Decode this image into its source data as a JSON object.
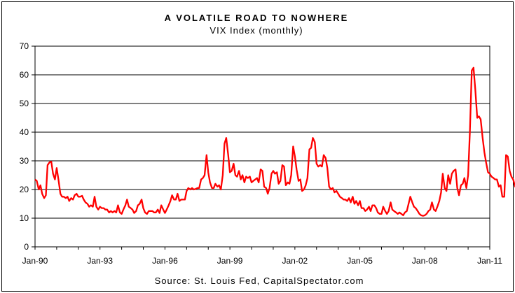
{
  "chart_data": {
    "type": "line",
    "title": "A VOLATILE ROAD TO NOWHERE",
    "subtitle": "VIX Index (monthly)",
    "source": "Source: St. Louis Fed, CapitalSpectator.com",
    "ylim": [
      0,
      70
    ],
    "y_ticks": [
      0,
      10,
      20,
      30,
      40,
      50,
      60,
      70
    ],
    "y_tick_labels": [
      "0",
      "10",
      "20",
      "30",
      "40",
      "50",
      "60",
      "70"
    ],
    "x_ticks": [
      1990,
      1993,
      1996,
      1999,
      2002,
      2005,
      2008,
      2011
    ],
    "x_tick_labels": [
      "Jan-90",
      "Jan-93",
      "Jan-96",
      "Jan-99",
      "Jan-02",
      "Jan-05",
      "Jan-08",
      "Jan-11"
    ],
    "xlim": [
      1990,
      2011
    ],
    "grid": "horizontal",
    "line_color": "#ff0000",
    "series": [
      {
        "values": [
          [
            1990.0,
            23.5
          ],
          [
            1990.08,
            23.0
          ],
          [
            1990.17,
            20.0
          ],
          [
            1990.25,
            21.5
          ],
          [
            1990.33,
            18.5
          ],
          [
            1990.42,
            17.0
          ],
          [
            1990.5,
            18.0
          ],
          [
            1990.58,
            28.5
          ],
          [
            1990.67,
            29.5
          ],
          [
            1990.75,
            29.7
          ],
          [
            1990.83,
            25.5
          ],
          [
            1990.92,
            23.5
          ],
          [
            1991.0,
            27.5
          ],
          [
            1991.08,
            23.5
          ],
          [
            1991.17,
            18.5
          ],
          [
            1991.25,
            17.5
          ],
          [
            1991.33,
            17.5
          ],
          [
            1991.42,
            17.0
          ],
          [
            1991.5,
            17.5
          ],
          [
            1991.58,
            16.0
          ],
          [
            1991.67,
            17.0
          ],
          [
            1991.75,
            16.5
          ],
          [
            1991.83,
            18.0
          ],
          [
            1991.92,
            18.5
          ],
          [
            1992.0,
            17.5
          ],
          [
            1992.08,
            17.5
          ],
          [
            1992.17,
            17.8
          ],
          [
            1992.25,
            16.5
          ],
          [
            1992.33,
            15.5
          ],
          [
            1992.42,
            15.0
          ],
          [
            1992.5,
            14.0
          ],
          [
            1992.58,
            14.5
          ],
          [
            1992.67,
            14.0
          ],
          [
            1992.75,
            17.5
          ],
          [
            1992.83,
            14.0
          ],
          [
            1992.92,
            13.0
          ],
          [
            1993.0,
            14.0
          ],
          [
            1993.08,
            13.5
          ],
          [
            1993.17,
            13.5
          ],
          [
            1993.25,
            13.0
          ],
          [
            1993.33,
            13.0
          ],
          [
            1993.42,
            12.0
          ],
          [
            1993.5,
            12.5
          ],
          [
            1993.58,
            12.0
          ],
          [
            1993.67,
            12.5
          ],
          [
            1993.75,
            12.0
          ],
          [
            1993.83,
            14.5
          ],
          [
            1993.92,
            12.0
          ],
          [
            1994.0,
            11.5
          ],
          [
            1994.08,
            13.0
          ],
          [
            1994.17,
            14.5
          ],
          [
            1994.25,
            16.5
          ],
          [
            1994.33,
            14.0
          ],
          [
            1994.42,
            13.5
          ],
          [
            1994.5,
            13.0
          ],
          [
            1994.58,
            11.8
          ],
          [
            1994.67,
            12.5
          ],
          [
            1994.75,
            14.5
          ],
          [
            1994.83,
            15.0
          ],
          [
            1994.92,
            16.5
          ],
          [
            1995.0,
            13.5
          ],
          [
            1995.08,
            12.0
          ],
          [
            1995.17,
            11.5
          ],
          [
            1995.25,
            12.5
          ],
          [
            1995.33,
            12.5
          ],
          [
            1995.42,
            12.5
          ],
          [
            1995.5,
            12.0
          ],
          [
            1995.58,
            12.0
          ],
          [
            1995.67,
            13.0
          ],
          [
            1995.75,
            11.8
          ],
          [
            1995.83,
            14.5
          ],
          [
            1995.92,
            13.0
          ],
          [
            1996.0,
            11.8
          ],
          [
            1996.08,
            13.0
          ],
          [
            1996.17,
            14.5
          ],
          [
            1996.25,
            16.0
          ],
          [
            1996.33,
            18.0
          ],
          [
            1996.42,
            16.5
          ],
          [
            1996.5,
            16.5
          ],
          [
            1996.58,
            18.5
          ],
          [
            1996.67,
            16.0
          ],
          [
            1996.75,
            16.5
          ],
          [
            1996.83,
            16.5
          ],
          [
            1996.92,
            16.5
          ],
          [
            1997.0,
            19.5
          ],
          [
            1997.08,
            20.5
          ],
          [
            1997.17,
            20.0
          ],
          [
            1997.25,
            20.5
          ],
          [
            1997.33,
            20.0
          ],
          [
            1997.42,
            20.2
          ],
          [
            1997.5,
            20.5
          ],
          [
            1997.58,
            20.5
          ],
          [
            1997.67,
            23.5
          ],
          [
            1997.75,
            24.0
          ],
          [
            1997.83,
            25.0
          ],
          [
            1997.92,
            32.0
          ],
          [
            1998.0,
            26.0
          ],
          [
            1998.08,
            22.5
          ],
          [
            1998.17,
            20.5
          ],
          [
            1998.25,
            20.5
          ],
          [
            1998.33,
            22.0
          ],
          [
            1998.42,
            21.0
          ],
          [
            1998.5,
            21.5
          ],
          [
            1998.58,
            20.0
          ],
          [
            1998.67,
            25.0
          ],
          [
            1998.75,
            36.0
          ],
          [
            1998.83,
            38.0
          ],
          [
            1998.92,
            32.0
          ],
          [
            1999.0,
            26.0
          ],
          [
            1999.08,
            26.5
          ],
          [
            1999.17,
            29.0
          ],
          [
            1999.25,
            25.0
          ],
          [
            1999.33,
            24.5
          ],
          [
            1999.42,
            26.5
          ],
          [
            1999.5,
            23.5
          ],
          [
            1999.58,
            25.0
          ],
          [
            1999.67,
            22.5
          ],
          [
            1999.75,
            24.5
          ],
          [
            1999.83,
            24.0
          ],
          [
            1999.92,
            24.5
          ],
          [
            2000.0,
            22.5
          ],
          [
            2000.08,
            23.0
          ],
          [
            2000.17,
            23.5
          ],
          [
            2000.25,
            24.0
          ],
          [
            2000.33,
            22.5
          ],
          [
            2000.42,
            27.0
          ],
          [
            2000.5,
            26.5
          ],
          [
            2000.58,
            21.0
          ],
          [
            2000.67,
            20.5
          ],
          [
            2000.75,
            18.5
          ],
          [
            2000.83,
            20.5
          ],
          [
            2000.92,
            25.5
          ],
          [
            2001.0,
            26.5
          ],
          [
            2001.08,
            25.5
          ],
          [
            2001.17,
            26.0
          ],
          [
            2001.25,
            22.0
          ],
          [
            2001.33,
            23.0
          ],
          [
            2001.42,
            28.5
          ],
          [
            2001.5,
            28.0
          ],
          [
            2001.58,
            21.5
          ],
          [
            2001.67,
            22.5
          ],
          [
            2001.75,
            22.0
          ],
          [
            2001.83,
            25.0
          ],
          [
            2001.92,
            35.0
          ],
          [
            2002.0,
            31.5
          ],
          [
            2002.08,
            27.0
          ],
          [
            2002.17,
            23.0
          ],
          [
            2002.25,
            23.5
          ],
          [
            2002.33,
            19.5
          ],
          [
            2002.42,
            20.0
          ],
          [
            2002.5,
            21.5
          ],
          [
            2002.58,
            24.0
          ],
          [
            2002.67,
            34.0
          ],
          [
            2002.75,
            34.5
          ],
          [
            2002.83,
            38.0
          ],
          [
            2002.92,
            36.5
          ],
          [
            2003.0,
            29.0
          ],
          [
            2003.08,
            28.0
          ],
          [
            2003.17,
            28.5
          ],
          [
            2003.25,
            28.0
          ],
          [
            2003.33,
            32.0
          ],
          [
            2003.42,
            31.0
          ],
          [
            2003.5,
            27.5
          ],
          [
            2003.58,
            21.0
          ],
          [
            2003.67,
            20.0
          ],
          [
            2003.75,
            20.5
          ],
          [
            2003.83,
            19.0
          ],
          [
            2003.92,
            19.5
          ],
          [
            2004.0,
            18.5
          ],
          [
            2004.08,
            17.5
          ],
          [
            2004.17,
            17.0
          ],
          [
            2004.25,
            16.5
          ],
          [
            2004.33,
            16.5
          ],
          [
            2004.42,
            16.0
          ],
          [
            2004.5,
            17.0
          ],
          [
            2004.58,
            15.5
          ],
          [
            2004.67,
            17.5
          ],
          [
            2004.75,
            15.0
          ],
          [
            2004.83,
            16.0
          ],
          [
            2004.92,
            14.5
          ],
          [
            2005.0,
            16.0
          ],
          [
            2005.08,
            13.5
          ],
          [
            2005.17,
            13.5
          ],
          [
            2005.25,
            12.5
          ],
          [
            2005.33,
            13.0
          ],
          [
            2005.42,
            14.0
          ],
          [
            2005.5,
            12.5
          ],
          [
            2005.58,
            14.5
          ],
          [
            2005.67,
            14.5
          ],
          [
            2005.75,
            13.5
          ],
          [
            2005.83,
            12.0
          ],
          [
            2005.92,
            11.5
          ],
          [
            2006.0,
            11.5
          ],
          [
            2006.08,
            14.0
          ],
          [
            2006.17,
            12.5
          ],
          [
            2006.25,
            11.5
          ],
          [
            2006.33,
            12.5
          ],
          [
            2006.42,
            15.5
          ],
          [
            2006.5,
            13.0
          ],
          [
            2006.58,
            12.5
          ],
          [
            2006.67,
            12.0
          ],
          [
            2006.75,
            11.5
          ],
          [
            2006.83,
            12.0
          ],
          [
            2006.92,
            11.5
          ],
          [
            2007.0,
            11.0
          ],
          [
            2007.08,
            12.0
          ],
          [
            2007.17,
            12.5
          ],
          [
            2007.25,
            15.0
          ],
          [
            2007.33,
            17.5
          ],
          [
            2007.42,
            15.5
          ],
          [
            2007.5,
            14.0
          ],
          [
            2007.58,
            13.5
          ],
          [
            2007.67,
            12.5
          ],
          [
            2007.75,
            11.5
          ],
          [
            2007.83,
            11.0
          ],
          [
            2007.92,
            10.8
          ],
          [
            2008.0,
            11.0
          ],
          [
            2008.08,
            11.5
          ],
          [
            2008.17,
            12.5
          ],
          [
            2008.25,
            13.0
          ],
          [
            2008.33,
            15.5
          ],
          [
            2008.42,
            13.0
          ],
          [
            2008.5,
            12.5
          ],
          [
            2008.58,
            14.0
          ],
          [
            2008.67,
            16.0
          ],
          [
            2008.75,
            19.0
          ],
          [
            2008.83,
            25.5
          ],
          [
            2008.92,
            20.5
          ],
          [
            2009.0,
            19.5
          ],
          [
            2009.08,
            25.0
          ],
          [
            2009.17,
            22.0
          ],
          [
            2009.25,
            25.5
          ],
          [
            2009.33,
            26.5
          ],
          [
            2009.42,
            27.0
          ],
          [
            2009.5,
            20.5
          ],
          [
            2009.58,
            18.0
          ],
          [
            2009.67,
            21.5
          ],
          [
            2009.75,
            22.0
          ],
          [
            2009.83,
            24.0
          ],
          [
            2009.92,
            20.5
          ],
          [
            2010.0,
            25.0
          ],
          [
            2010.08,
            40.0
          ],
          [
            2010.17,
            61.5
          ],
          [
            2010.25,
            62.5
          ],
          [
            2010.33,
            55.0
          ],
          [
            2010.42,
            45.0
          ],
          [
            2010.5,
            45.5
          ],
          [
            2010.58,
            44.5
          ],
          [
            2010.67,
            38.0
          ],
          [
            2010.75,
            33.0
          ],
          [
            2010.83,
            29.5
          ],
          [
            2010.92,
            26.0
          ],
          [
            2011.0,
            25.5
          ],
          [
            2011.08,
            24.5
          ],
          [
            2011.17,
            24.0
          ],
          [
            2011.25,
            23.5
          ],
          [
            2011.33,
            23.5
          ],
          [
            2011.42,
            21.0
          ],
          [
            2011.5,
            21.5
          ],
          [
            2011.58,
            17.5
          ],
          [
            2011.67,
            17.5
          ],
          [
            2011.75,
            32.0
          ],
          [
            2011.83,
            31.5
          ],
          [
            2011.92,
            26.5
          ],
          [
            2012.0,
            24.5
          ],
          [
            2012.08,
            23.5
          ],
          [
            2012.17,
            21.0
          ],
          [
            2012.25,
            20.5
          ],
          [
            2012.33,
            20.5
          ],
          [
            2012.42,
            17.5
          ],
          [
            2012.5,
            17.0
          ]
        ]
      }
    ]
  }
}
